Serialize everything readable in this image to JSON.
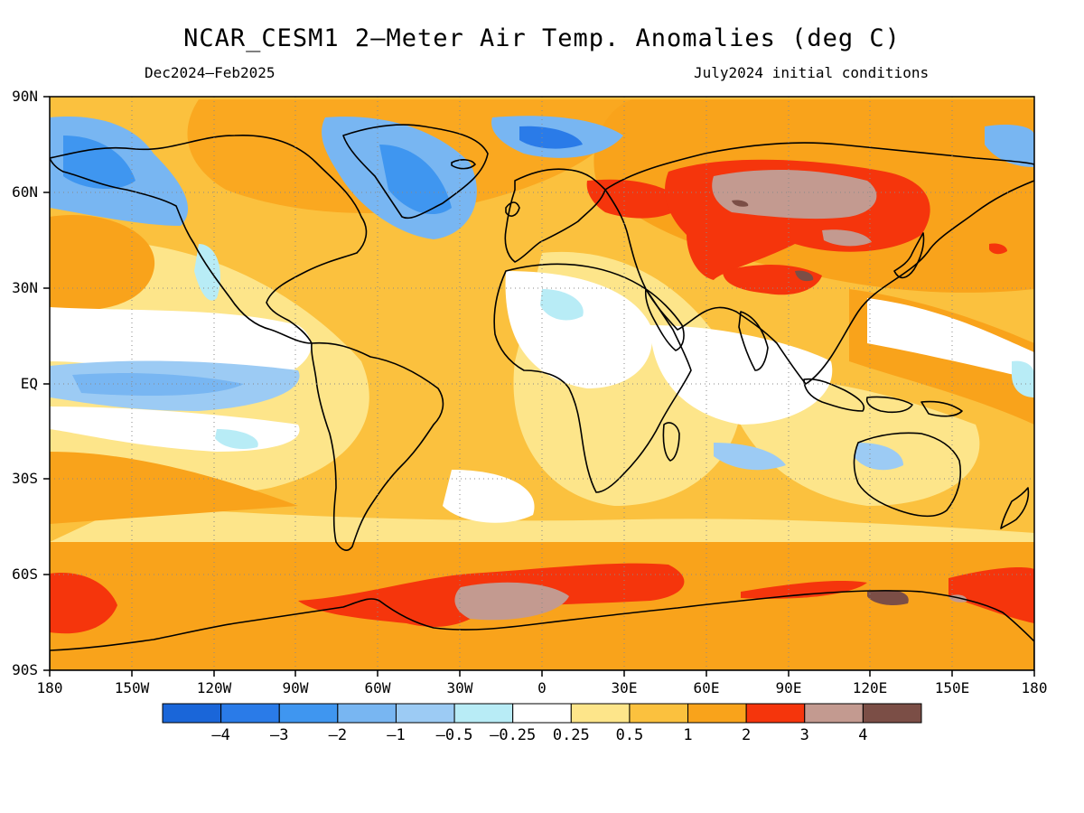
{
  "figure": {
    "title": "NCAR_CESM1 2–Meter Air Temp. Anomalies (deg C)",
    "period": "Dec2024–Feb2025",
    "initial_conditions": "July2024 initial conditions"
  },
  "map": {
    "lon_labels": [
      "180",
      "150W",
      "120W",
      "90W",
      "60W",
      "30W",
      "0",
      "30E",
      "60E",
      "90E",
      "120E",
      "150E",
      "180"
    ],
    "lat_labels": [
      "90N",
      "60N",
      "30N",
      "EQ",
      "30S",
      "60S",
      "90S"
    ],
    "grid": "dotted",
    "colors": {
      "lt_m4": "#1a66d9",
      "m4_m3": "#2a7be8",
      "m3_m2": "#3f96f0",
      "m2_m1": "#78b6f2",
      "m1_m05": "#9ccbf4",
      "m05_m025": "#b8ecf6",
      "neutral": "#ffffff",
      "p025_p05": "#fde58a",
      "p05_p1": "#fbc13e",
      "p1_p2": "#f9a31b",
      "p2_p3": "#f5350c",
      "p3_p4": "#c39a90",
      "gt_p4": "#7b4e46"
    }
  },
  "colorbar": {
    "labels": [
      "–4",
      "–3",
      "–2",
      "–1",
      "–0.5",
      "–0.25",
      "0.25",
      "0.5",
      "1",
      "2",
      "3",
      "4"
    ],
    "colors": [
      "#1a66d9",
      "#2a7be8",
      "#3f96f0",
      "#78b6f2",
      "#9ccbf4",
      "#b8ecf6",
      "#ffffff",
      "#fde58a",
      "#fbc13e",
      "#f9a31b",
      "#f5350c",
      "#c39a90",
      "#7b4e46"
    ]
  }
}
